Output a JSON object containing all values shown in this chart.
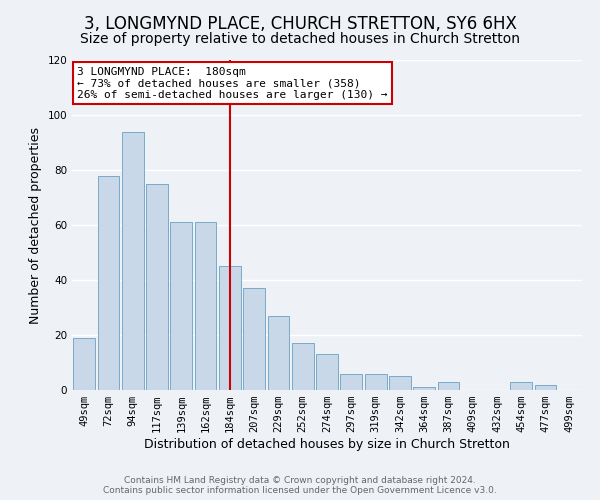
{
  "title": "3, LONGMYND PLACE, CHURCH STRETTON, SY6 6HX",
  "subtitle": "Size of property relative to detached houses in Church Stretton",
  "xlabel": "Distribution of detached houses by size in Church Stretton",
  "ylabel": "Number of detached properties",
  "bar_color": "#c8d8e8",
  "bar_edge_color": "#7aaac8",
  "categories": [
    "49sqm",
    "72sqm",
    "94sqm",
    "117sqm",
    "139sqm",
    "162sqm",
    "184sqm",
    "207sqm",
    "229sqm",
    "252sqm",
    "274sqm",
    "297sqm",
    "319sqm",
    "342sqm",
    "364sqm",
    "387sqm",
    "409sqm",
    "432sqm",
    "454sqm",
    "477sqm",
    "499sqm"
  ],
  "values": [
    19,
    78,
    94,
    75,
    61,
    61,
    45,
    37,
    27,
    17,
    13,
    6,
    6,
    5,
    1,
    3,
    0,
    0,
    3,
    2,
    0
  ],
  "ylim": [
    0,
    120
  ],
  "yticks": [
    0,
    20,
    40,
    60,
    80,
    100,
    120
  ],
  "property_line_x": 6,
  "property_label": "3 LONGMYND PLACE:  180sqm",
  "annotation_line1": "← 73% of detached houses are smaller (358)",
  "annotation_line2": "26% of semi-detached houses are larger (130) →",
  "annotation_box_color": "#ffffff",
  "annotation_box_edge": "#cc0000",
  "property_line_color": "#cc0000",
  "background_color": "#eef2f7",
  "grid_color": "#ffffff",
  "footer_line1": "Contains HM Land Registry data © Crown copyright and database right 2024.",
  "footer_line2": "Contains public sector information licensed under the Open Government Licence v3.0.",
  "title_fontsize": 12,
  "subtitle_fontsize": 10,
  "tick_fontsize": 7.5,
  "axis_label_fontsize": 9,
  "footer_fontsize": 6.5
}
